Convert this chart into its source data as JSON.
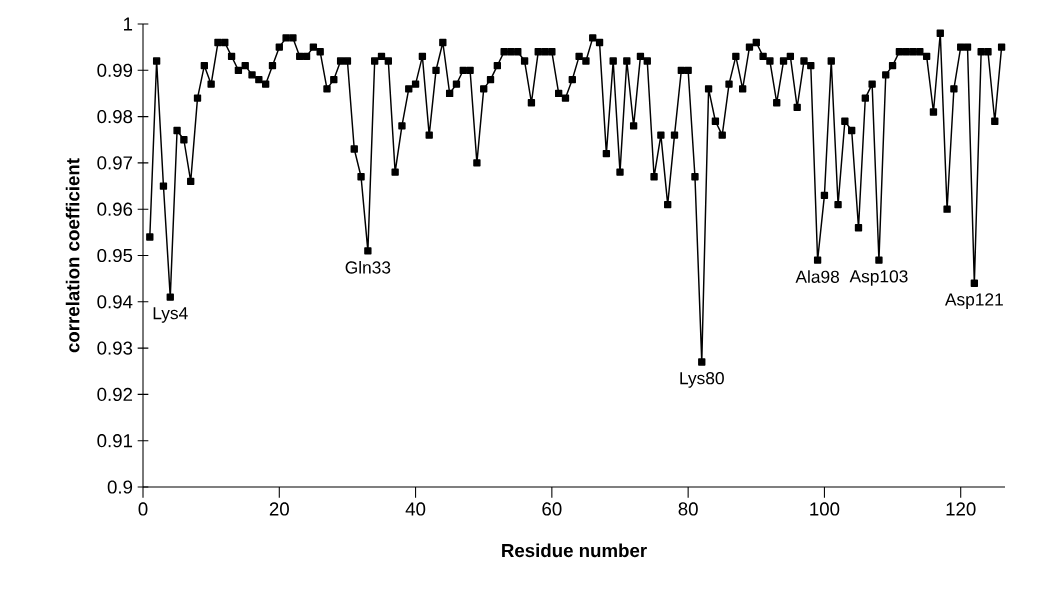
{
  "chart_data": {
    "type": "line",
    "xlabel": "Residue number",
    "ylabel": "correlation coefficient",
    "xlim": [
      0,
      126.5
    ],
    "ylim": [
      0.9,
      1
    ],
    "xticks": [
      0,
      20,
      40,
      60,
      80,
      100,
      120
    ],
    "yticks": [
      0.9,
      0.91,
      0.92,
      0.93,
      0.94,
      0.95,
      0.96,
      0.97,
      0.98,
      0.99,
      1
    ],
    "marker": "square",
    "line_style": "solid",
    "series": [
      {
        "color": "#000000",
        "x": [
          1,
          2,
          3,
          4,
          5,
          6,
          7,
          8,
          9,
          10,
          11,
          12,
          13,
          14,
          15,
          16,
          17,
          18,
          19,
          20,
          21,
          22,
          23,
          24,
          25,
          26,
          27,
          28,
          29,
          30,
          31,
          32,
          33,
          34,
          35,
          36,
          37,
          38,
          39,
          40,
          41,
          42,
          43,
          44,
          45,
          46,
          47,
          48,
          49,
          50,
          51,
          52,
          53,
          54,
          55,
          56,
          57,
          58,
          59,
          60,
          61,
          62,
          63,
          64,
          65,
          66,
          67,
          68,
          69,
          70,
          71,
          72,
          73,
          74,
          75,
          76,
          77,
          78,
          79,
          80,
          81,
          82,
          83,
          84,
          85,
          86,
          87,
          88,
          89,
          90,
          91,
          92,
          93,
          94,
          95,
          96,
          97,
          98,
          99,
          100,
          101,
          102,
          103,
          104,
          105,
          106,
          107,
          108,
          109,
          110,
          111,
          112,
          113,
          114,
          115,
          116,
          117,
          118,
          119,
          120,
          121,
          122,
          123,
          124,
          125,
          126
        ],
        "values": [
          0.954,
          0.992,
          0.965,
          0.941,
          0.977,
          0.975,
          0.966,
          0.984,
          0.991,
          0.987,
          0.996,
          0.996,
          0.993,
          0.99,
          0.991,
          0.989,
          0.988,
          0.987,
          0.991,
          0.995,
          0.997,
          0.997,
          0.993,
          0.993,
          0.995,
          0.994,
          0.986,
          0.988,
          0.992,
          0.992,
          0.973,
          0.967,
          0.951,
          0.992,
          0.993,
          0.992,
          0.968,
          0.978,
          0.986,
          0.987,
          0.993,
          0.976,
          0.99,
          0.996,
          0.985,
          0.987,
          0.99,
          0.99,
          0.97,
          0.986,
          0.988,
          0.991,
          0.994,
          0.994,
          0.994,
          0.992,
          0.983,
          0.994,
          0.994,
          0.994,
          0.985,
          0.984,
          0.988,
          0.993,
          0.992,
          0.997,
          0.996,
          0.972,
          0.992,
          0.968,
          0.992,
          0.978,
          0.993,
          0.992,
          0.967,
          0.976,
          0.961,
          0.976,
          0.99,
          0.99,
          0.967,
          0.927,
          0.986,
          0.979,
          0.976,
          0.987,
          0.993,
          0.986,
          0.995,
          0.996,
          0.993,
          0.992,
          0.983,
          0.992,
          0.993,
          0.982,
          0.992,
          0.991,
          0.949,
          0.963,
          0.992,
          0.961,
          0.979,
          0.977,
          0.956,
          0.984,
          0.987,
          0.949,
          0.989,
          0.991,
          0.994,
          0.994,
          0.994,
          0.994,
          0.993,
          0.981,
          0.998,
          0.96,
          0.986,
          0.995,
          0.995,
          0.944,
          0.994,
          0.994,
          0.979,
          0.995
        ]
      }
    ],
    "annotations": [
      {
        "text": "Lys4",
        "x": 4,
        "y": 0.941
      },
      {
        "text": "Gln33",
        "x": 33,
        "y": 0.951
      },
      {
        "text": "Lys80",
        "x": 82,
        "y": 0.927
      },
      {
        "text": "Ala98",
        "x": 99,
        "y": 0.949
      },
      {
        "text": "Asp103",
        "x": 108,
        "y": 0.949
      },
      {
        "text": "Asp121",
        "x": 122,
        "y": 0.944
      }
    ]
  }
}
